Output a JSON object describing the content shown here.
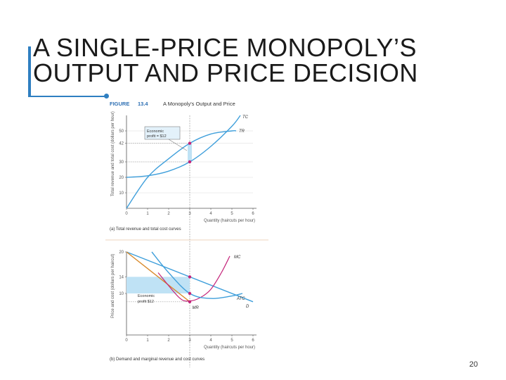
{
  "slide": {
    "title_line1": "A SINGLE-PRICE MONOPOLY’S",
    "title_line2": "OUTPUT AND PRICE DECISION",
    "page_number": "20"
  },
  "figure": {
    "label": "FIGURE",
    "number": "13.4",
    "title": "A Monopoly's Output and Price"
  },
  "colors": {
    "accent": "#2f7fc1",
    "tc_tr_curves": "#3f9fdb",
    "mr_curve": "#d98a2b",
    "mc_curve": "#c4247a",
    "profit_fill": "#bfe2f5",
    "figure_title": "#2d6fb3"
  },
  "chart_data": [
    {
      "type": "line",
      "caption": "(a) Total revenue and total cost curves",
      "ylabel": "Total revenue and total cost (dollars per hour)",
      "xlabel": "Quantity (haircuts per hour)",
      "x_ticks": [
        "0",
        "1",
        "2",
        "3",
        "4",
        "5",
        "6"
      ],
      "y_ticks": [
        "10",
        "20",
        "30",
        "42",
        "50"
      ],
      "xlim": [
        0,
        6
      ],
      "ylim": [
        0,
        60
      ],
      "series": [
        {
          "name": "TC",
          "x": [
            0,
            1,
            2,
            3,
            4,
            5,
            5.4
          ],
          "y": [
            20,
            21,
            24,
            30,
            40,
            53,
            60
          ]
        },
        {
          "name": "TR",
          "x": [
            0,
            1,
            2,
            3,
            4,
            5,
            5.2
          ],
          "y": [
            0,
            20,
            32,
            42,
            48,
            50,
            50
          ]
        }
      ],
      "markers": [
        {
          "x": 3,
          "y": 42
        },
        {
          "x": 3,
          "y": 30
        }
      ],
      "annotation": {
        "line1": "Economic",
        "line2": "profit = $12"
      }
    },
    {
      "type": "line",
      "caption": "(b) Demand and marginal revenue and cost curves",
      "ylabel": "Price and cost (dollars per haircut)",
      "xlabel": "Quantity (haircuts per hour)",
      "x_ticks": [
        "0",
        "1",
        "2",
        "3",
        "4",
        "5",
        "6"
      ],
      "y_ticks": [
        "10",
        "14",
        "20"
      ],
      "xlim": [
        0,
        6
      ],
      "ylim": [
        0,
        20
      ],
      "series": [
        {
          "name": "D",
          "x": [
            0,
            6
          ],
          "y": [
            20,
            8
          ]
        },
        {
          "name": "MR",
          "x": [
            0,
            3.05
          ],
          "y": [
            20,
            7.8
          ]
        },
        {
          "name": "MC",
          "x": [
            1.5,
            2.5,
            3,
            3.5,
            4,
            4.5,
            4.9
          ],
          "y": [
            15,
            9,
            8.2,
            9,
            11,
            15,
            19
          ]
        },
        {
          "name": "ATC",
          "x": [
            1.2,
            2,
            3,
            4,
            5,
            5.5
          ],
          "y": [
            20,
            15,
            10,
            8.8,
            9.4,
            10
          ]
        }
      ],
      "markers": [
        {
          "x": 3,
          "y": 14
        },
        {
          "x": 3,
          "y": 10
        },
        {
          "x": 3,
          "y": 8
        }
      ],
      "profit_area": {
        "x": [
          0,
          3
        ],
        "y": [
          10,
          14
        ]
      },
      "annotation": {
        "line1": "Economic",
        "line2": "profit $12"
      }
    }
  ]
}
